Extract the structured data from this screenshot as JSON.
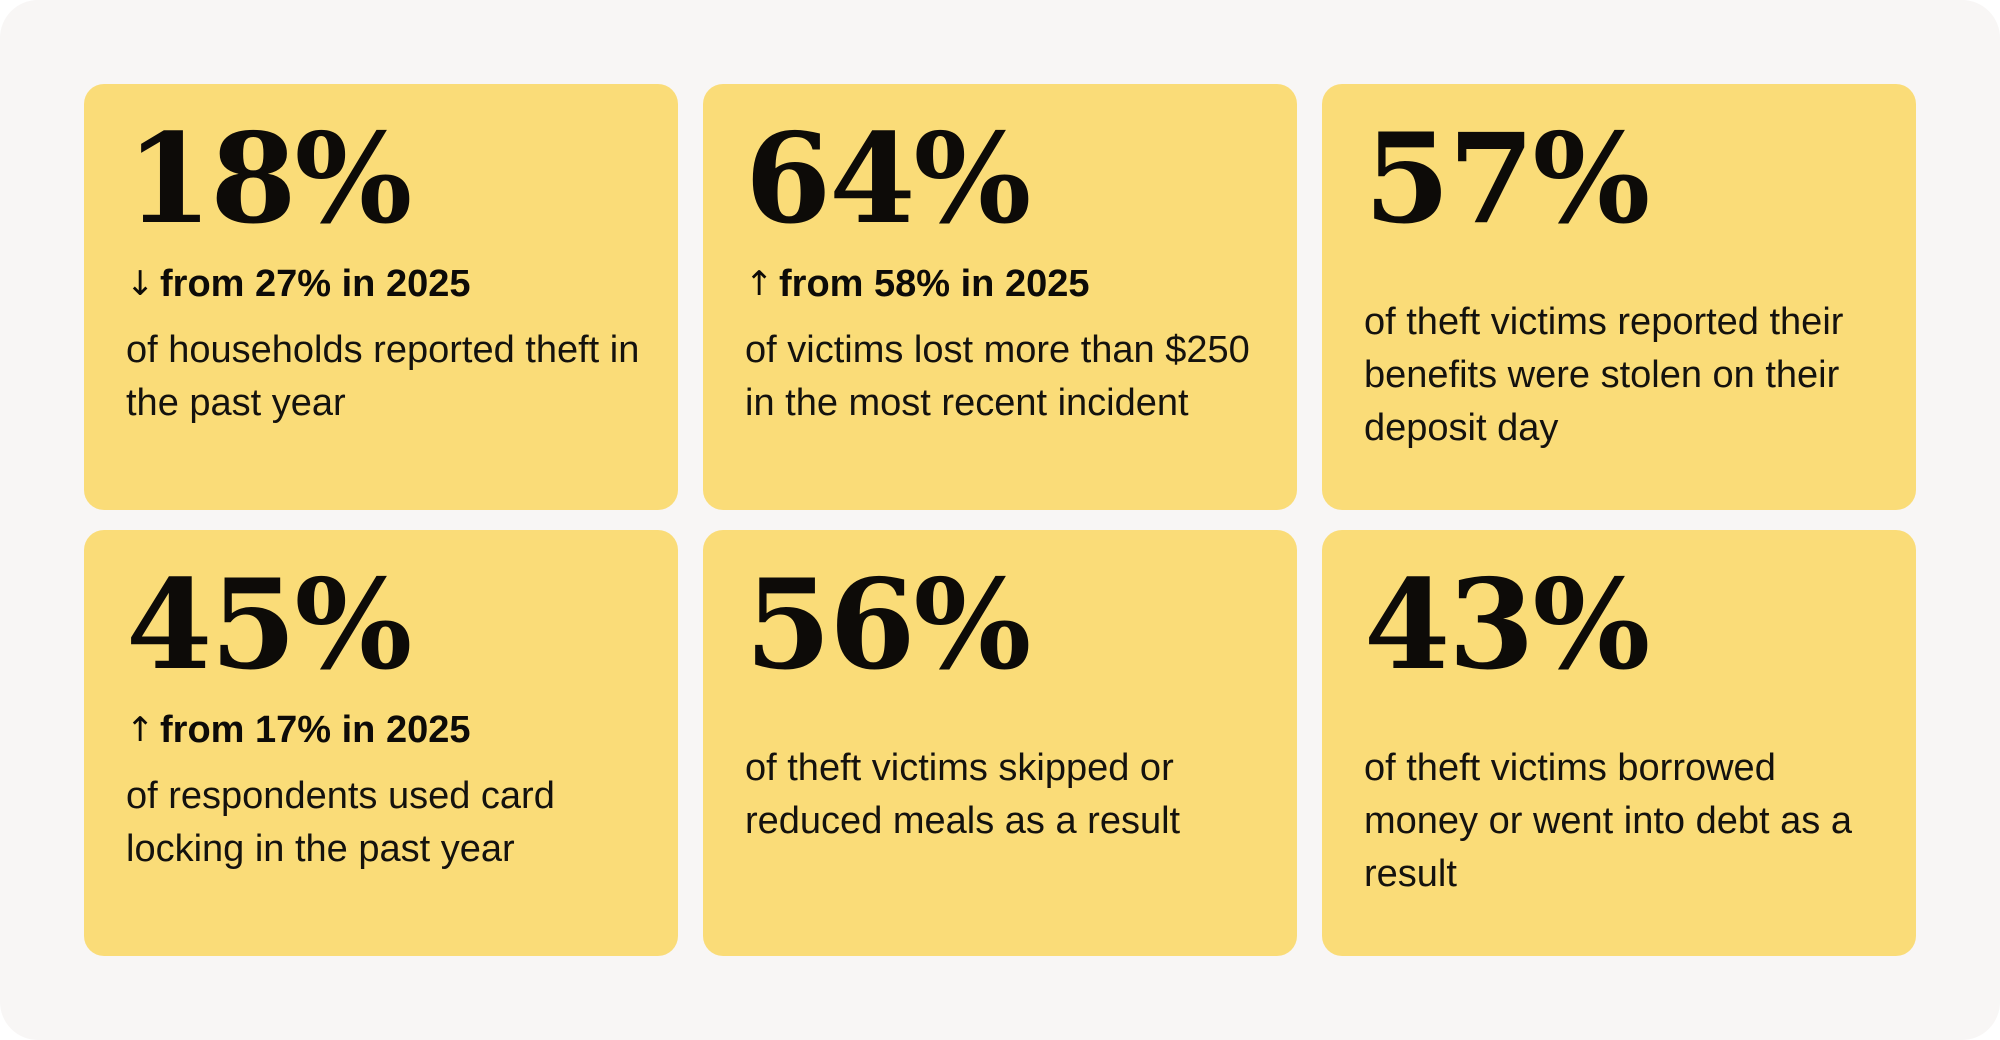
{
  "stats": [
    {
      "value": "18%",
      "arrow": "↓",
      "change": "from 27% in 2025",
      "description": "of households reported theft in the past year"
    },
    {
      "value": "64%",
      "arrow": "↑",
      "change": "from 58% in 2025",
      "description": "of victims lost more than $250 in the most recent incident"
    },
    {
      "value": "57%",
      "description": "of theft victims reported their benefits were stolen on their deposit day"
    },
    {
      "value": "45%",
      "arrow": "↑",
      "change": "from 17% in 2025",
      "description": "of respondents used card locking in the past year"
    },
    {
      "value": "56%",
      "description": "of theft victims skipped or reduced meals as a result"
    },
    {
      "value": "43%",
      "description": "of theft victims borrowed money or went into debt as a result"
    }
  ],
  "colors": {
    "background": "#f8f6f5",
    "card": "#fadc78",
    "text": "#0d0b08"
  }
}
